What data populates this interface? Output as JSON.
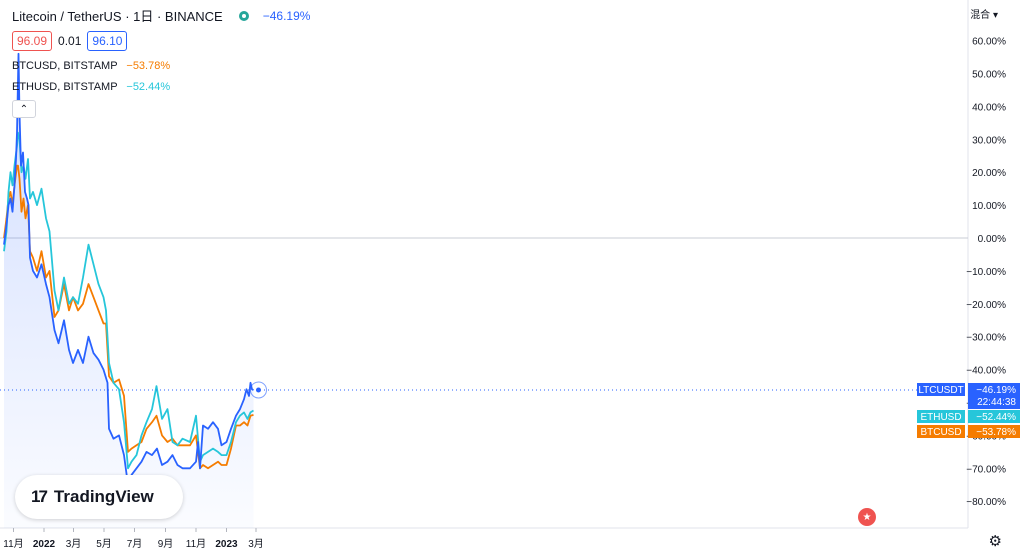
{
  "header": {
    "title": "Litecoin / TetherUS · 1日 · BINANCE",
    "change": "−46.19%",
    "bid": "96.09",
    "spread": "0.01",
    "ask": "96.10",
    "collapse_label": "⌃",
    "axis_mode": "混合 ▾"
  },
  "compare": [
    {
      "label": "BTCUSD, BITSTAMP",
      "change": "−53.78%",
      "color": "#f57c00"
    },
    {
      "label": "ETHUSD, BITSTAMP",
      "change": "−52.44%",
      "color": "#26c6da"
    }
  ],
  "branding": {
    "logo_mark": "17",
    "logo_text": "TradingView"
  },
  "icons": {
    "settings": "gear-icon",
    "flag": "us-flag-icon"
  },
  "chart_data": {
    "type": "line",
    "yaxis": {
      "min": -85,
      "max": 65,
      "ticks": [
        60,
        50,
        40,
        30,
        20,
        10,
        0,
        -10,
        -20,
        -30,
        -40,
        -50,
        -60,
        -70,
        -80
      ],
      "unit": "%"
    },
    "xaxis": {
      "start": "2021-10-13",
      "end": "2023-03-01",
      "ticks": [
        {
          "label": "11月",
          "date": "2021-11-01"
        },
        {
          "label": "2022",
          "date": "2022-01-01",
          "bold": true
        },
        {
          "label": "3月",
          "date": "2022-03-01"
        },
        {
          "label": "5月",
          "date": "2022-05-01"
        },
        {
          "label": "7月",
          "date": "2022-07-01"
        },
        {
          "label": "9月",
          "date": "2022-09-01"
        },
        {
          "label": "11月",
          "date": "2022-11-01"
        },
        {
          "label": "2023",
          "date": "2023-01-01",
          "bold": true
        },
        {
          "label": "3月",
          "date": "2023-03-01"
        }
      ]
    },
    "series": [
      {
        "name": "LTCUSDT",
        "color": "#2962ff",
        "last": "−46.19%",
        "last_value": -46.19,
        "time": "22:44:38",
        "filled": true,
        "points": [
          [
            "2021-10-13",
            -2
          ],
          [
            "2021-10-18",
            4
          ],
          [
            "2021-10-22",
            10
          ],
          [
            "2021-10-26",
            12
          ],
          [
            "2021-10-30",
            8
          ],
          [
            "2021-11-03",
            16
          ],
          [
            "2021-11-06",
            24
          ],
          [
            "2021-11-08",
            32
          ],
          [
            "2021-11-10",
            48
          ],
          [
            "2021-11-11",
            56
          ],
          [
            "2021-11-13",
            38
          ],
          [
            "2021-11-16",
            22
          ],
          [
            "2021-11-20",
            26
          ],
          [
            "2021-11-24",
            14
          ],
          [
            "2021-11-28",
            12
          ],
          [
            "2021-12-01",
            10
          ],
          [
            "2021-12-04",
            -6
          ],
          [
            "2021-12-10",
            -10
          ],
          [
            "2021-12-18",
            -12
          ],
          [
            "2021-12-27",
            -8
          ],
          [
            "2022-01-05",
            -14
          ],
          [
            "2022-01-12",
            -18
          ],
          [
            "2022-01-22",
            -28
          ],
          [
            "2022-01-30",
            -32
          ],
          [
            "2022-02-10",
            -25
          ],
          [
            "2022-02-20",
            -34
          ],
          [
            "2022-02-28",
            -38
          ],
          [
            "2022-03-10",
            -34
          ],
          [
            "2022-03-20",
            -38
          ],
          [
            "2022-03-31",
            -30
          ],
          [
            "2022-04-10",
            -35
          ],
          [
            "2022-04-20",
            -37
          ],
          [
            "2022-04-30",
            -40
          ],
          [
            "2022-05-08",
            -44
          ],
          [
            "2022-05-11",
            -58
          ],
          [
            "2022-05-20",
            -61
          ],
          [
            "2022-05-31",
            -60
          ],
          [
            "2022-06-10",
            -66
          ],
          [
            "2022-06-18",
            -75
          ],
          [
            "2022-06-25",
            -72
          ],
          [
            "2022-07-05",
            -70
          ],
          [
            "2022-07-15",
            -68
          ],
          [
            "2022-07-25",
            -65
          ],
          [
            "2022-08-05",
            -66
          ],
          [
            "2022-08-15",
            -64
          ],
          [
            "2022-08-25",
            -69
          ],
          [
            "2022-09-05",
            -68
          ],
          [
            "2022-09-15",
            -66
          ],
          [
            "2022-09-25",
            -69
          ],
          [
            "2022-10-05",
            -70
          ],
          [
            "2022-10-20",
            -70
          ],
          [
            "2022-11-01",
            -68
          ],
          [
            "2022-11-05",
            -62
          ],
          [
            "2022-11-09",
            -70
          ],
          [
            "2022-11-15",
            -57
          ],
          [
            "2022-11-25",
            -58
          ],
          [
            "2022-12-05",
            -56
          ],
          [
            "2022-12-15",
            -58
          ],
          [
            "2022-12-22",
            -63
          ],
          [
            "2023-01-01",
            -62
          ],
          [
            "2023-01-10",
            -58
          ],
          [
            "2023-01-20",
            -54
          ],
          [
            "2023-01-28",
            -52
          ],
          [
            "2023-02-05",
            -49
          ],
          [
            "2023-02-10",
            -46
          ],
          [
            "2023-02-15",
            -48
          ],
          [
            "2023-02-18",
            -44
          ],
          [
            "2023-02-21",
            -46
          ],
          [
            "2023-02-24",
            -46.19
          ]
        ]
      },
      {
        "name": "ETHUSD",
        "color": "#26c6da",
        "last": "−52.44%",
        "last_value": -52.44,
        "points": [
          [
            "2021-10-13",
            -4
          ],
          [
            "2021-10-18",
            2
          ],
          [
            "2021-10-22",
            14
          ],
          [
            "2021-10-26",
            20
          ],
          [
            "2021-10-30",
            16
          ],
          [
            "2021-11-03",
            22
          ],
          [
            "2021-11-08",
            28
          ],
          [
            "2021-11-10",
            32
          ],
          [
            "2021-11-13",
            30
          ],
          [
            "2021-11-17",
            20
          ],
          [
            "2021-11-21",
            22
          ],
          [
            "2021-11-25",
            18
          ],
          [
            "2021-11-30",
            24
          ],
          [
            "2021-12-04",
            12
          ],
          [
            "2021-12-10",
            14
          ],
          [
            "2021-12-18",
            10
          ],
          [
            "2021-12-27",
            15
          ],
          [
            "2022-01-05",
            6
          ],
          [
            "2022-01-12",
            2
          ],
          [
            "2022-01-22",
            -16
          ],
          [
            "2022-01-30",
            -22
          ],
          [
            "2022-02-10",
            -12
          ],
          [
            "2022-02-20",
            -20
          ],
          [
            "2022-02-28",
            -18
          ],
          [
            "2022-03-10",
            -20
          ],
          [
            "2022-03-20",
            -12
          ],
          [
            "2022-03-31",
            -2
          ],
          [
            "2022-04-10",
            -8
          ],
          [
            "2022-04-20",
            -14
          ],
          [
            "2022-04-30",
            -18
          ],
          [
            "2022-05-05",
            -22
          ],
          [
            "2022-05-11",
            -38
          ],
          [
            "2022-05-20",
            -44
          ],
          [
            "2022-05-31",
            -46
          ],
          [
            "2022-06-10",
            -56
          ],
          [
            "2022-06-18",
            -70
          ],
          [
            "2022-06-25",
            -68
          ],
          [
            "2022-07-05",
            -66
          ],
          [
            "2022-07-15",
            -60
          ],
          [
            "2022-07-25",
            -56
          ],
          [
            "2022-08-05",
            -52
          ],
          [
            "2022-08-14",
            -45
          ],
          [
            "2022-08-25",
            -55
          ],
          [
            "2022-09-05",
            -52
          ],
          [
            "2022-09-15",
            -62
          ],
          [
            "2022-09-25",
            -63
          ],
          [
            "2022-10-05",
            -61
          ],
          [
            "2022-10-20",
            -62
          ],
          [
            "2022-11-01",
            -54
          ],
          [
            "2022-11-09",
            -68
          ],
          [
            "2022-11-15",
            -66
          ],
          [
            "2022-11-25",
            -65
          ],
          [
            "2022-12-05",
            -64
          ],
          [
            "2022-12-15",
            -65
          ],
          [
            "2022-12-22",
            -66
          ],
          [
            "2023-01-01",
            -66
          ],
          [
            "2023-01-10",
            -62
          ],
          [
            "2023-01-20",
            -56
          ],
          [
            "2023-01-28",
            -54
          ],
          [
            "2023-02-05",
            -53
          ],
          [
            "2023-02-12",
            -55
          ],
          [
            "2023-02-18",
            -53
          ],
          [
            "2023-02-24",
            -52.44
          ]
        ]
      },
      {
        "name": "BTCUSD",
        "color": "#f57c00",
        "last": "−53.78%",
        "last_value": -53.78,
        "points": [
          [
            "2021-10-13",
            0
          ],
          [
            "2021-10-18",
            6
          ],
          [
            "2021-10-22",
            12
          ],
          [
            "2021-10-26",
            14
          ],
          [
            "2021-10-30",
            10
          ],
          [
            "2021-11-03",
            16
          ],
          [
            "2021-11-08",
            22
          ],
          [
            "2021-11-10",
            22
          ],
          [
            "2021-11-13",
            18
          ],
          [
            "2021-11-17",
            8
          ],
          [
            "2021-11-21",
            12
          ],
          [
            "2021-11-25",
            6
          ],
          [
            "2021-11-30",
            10
          ],
          [
            "2021-12-04",
            -4
          ],
          [
            "2021-12-10",
            -6
          ],
          [
            "2021-12-18",
            -10
          ],
          [
            "2021-12-27",
            -4
          ],
          [
            "2022-01-05",
            -12
          ],
          [
            "2022-01-12",
            -10
          ],
          [
            "2022-01-22",
            -24
          ],
          [
            "2022-01-30",
            -22
          ],
          [
            "2022-02-10",
            -14
          ],
          [
            "2022-02-20",
            -22
          ],
          [
            "2022-02-28",
            -18
          ],
          [
            "2022-03-10",
            -22
          ],
          [
            "2022-03-20",
            -20
          ],
          [
            "2022-03-31",
            -14
          ],
          [
            "2022-04-10",
            -18
          ],
          [
            "2022-04-20",
            -22
          ],
          [
            "2022-04-30",
            -26
          ],
          [
            "2022-05-05",
            -26
          ],
          [
            "2022-05-11",
            -42
          ],
          [
            "2022-05-20",
            -44
          ],
          [
            "2022-05-31",
            -43
          ],
          [
            "2022-06-10",
            -48
          ],
          [
            "2022-06-18",
            -65
          ],
          [
            "2022-06-25",
            -64
          ],
          [
            "2022-07-05",
            -63
          ],
          [
            "2022-07-15",
            -62
          ],
          [
            "2022-07-25",
            -58
          ],
          [
            "2022-08-05",
            -56
          ],
          [
            "2022-08-14",
            -54
          ],
          [
            "2022-08-25",
            -60
          ],
          [
            "2022-09-05",
            -62
          ],
          [
            "2022-09-15",
            -61
          ],
          [
            "2022-09-25",
            -63
          ],
          [
            "2022-10-05",
            -63
          ],
          [
            "2022-10-20",
            -63
          ],
          [
            "2022-11-01",
            -60
          ],
          [
            "2022-11-09",
            -70
          ],
          [
            "2022-11-15",
            -69
          ],
          [
            "2022-11-25",
            -70
          ],
          [
            "2022-12-05",
            -69
          ],
          [
            "2022-12-15",
            -68
          ],
          [
            "2022-12-22",
            -69
          ],
          [
            "2023-01-01",
            -69
          ],
          [
            "2023-01-10",
            -64
          ],
          [
            "2023-01-20",
            -57
          ],
          [
            "2023-01-28",
            -57
          ],
          [
            "2023-02-05",
            -56
          ],
          [
            "2023-02-12",
            -57
          ],
          [
            "2023-02-18",
            -54
          ],
          [
            "2023-02-24",
            -53.78
          ]
        ]
      }
    ]
  }
}
